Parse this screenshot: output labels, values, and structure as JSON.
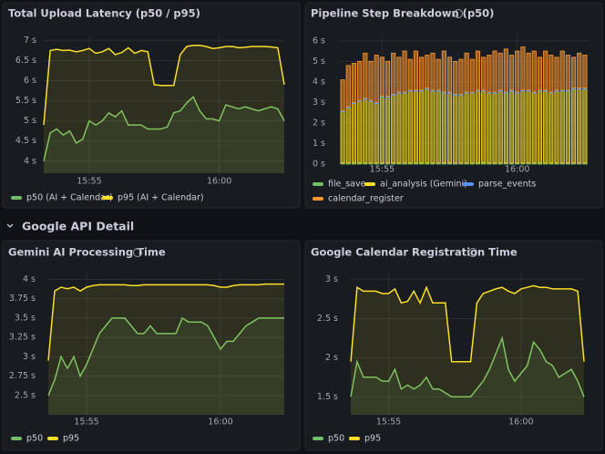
{
  "row_title": "Google API Detail",
  "chart_data": [
    {
      "type": "line",
      "title": "Total Upload Latency (p50 / p95)",
      "categories": [
        null,
        null,
        null,
        null,
        null,
        null,
        null,
        "15:55",
        null,
        null,
        null,
        null,
        null,
        null,
        null,
        null,
        null,
        null,
        null,
        null,
        null,
        null,
        null,
        null,
        null,
        null,
        null,
        "16:00",
        null,
        null,
        null,
        null,
        null,
        null,
        null,
        null,
        null,
        null
      ],
      "ylim": [
        3.7,
        7.1
      ],
      "yticks": [
        {
          "value": 4,
          "label": "4 s"
        },
        {
          "value": 4.5,
          "label": "4.5 s"
        },
        {
          "value": 5,
          "label": "5 s"
        },
        {
          "value": 5.5,
          "label": "5.5 s"
        },
        {
          "value": 6,
          "label": "6 s"
        },
        {
          "value": 6.5,
          "label": "6.5 s"
        },
        {
          "value": 7,
          "label": "7 s"
        }
      ],
      "series": [
        {
          "name": "p50 (AI + Calendar)",
          "color": "#73bf69",
          "values": [
            4.0,
            4.7,
            4.8,
            4.65,
            4.75,
            4.45,
            4.55,
            5.0,
            4.9,
            5.0,
            5.2,
            5.1,
            5.25,
            4.9,
            4.9,
            4.9,
            4.8,
            4.8,
            4.8,
            4.85,
            5.2,
            5.25,
            5.45,
            5.6,
            5.25,
            5.05,
            5.05,
            5.0,
            5.4,
            5.35,
            5.3,
            5.35,
            5.3,
            5.25,
            5.3,
            5.35,
            5.3,
            5.0
          ]
        },
        {
          "name": "p95 (AI + Calendar)",
          "color": "#fade2a",
          "values": [
            4.9,
            6.75,
            6.78,
            6.75,
            6.76,
            6.72,
            6.75,
            6.8,
            6.68,
            6.72,
            6.8,
            6.65,
            6.7,
            6.82,
            6.68,
            6.75,
            6.72,
            5.9,
            5.88,
            5.88,
            5.88,
            6.65,
            6.85,
            6.88,
            6.88,
            6.85,
            6.8,
            6.82,
            6.85,
            6.85,
            6.82,
            6.83,
            6.85,
            6.85,
            6.85,
            6.84,
            6.82,
            5.9
          ]
        }
      ]
    },
    {
      "type": "bar",
      "title": "Pipeline Step Breakdown (p50)",
      "stacked": true,
      "categories": [
        null,
        null,
        null,
        null,
        null,
        null,
        null,
        "15:55",
        null,
        null,
        null,
        null,
        null,
        null,
        null,
        null,
        null,
        null,
        null,
        null,
        null,
        null,
        null,
        null,
        null,
        null,
        null,
        null,
        null,
        null,
        null,
        "16:00",
        null,
        null,
        null,
        null,
        null,
        null,
        null,
        null,
        null,
        null,
        null,
        null
      ],
      "ylim": [
        0,
        6.3
      ],
      "yticks": [
        {
          "value": 0,
          "label": "0 s"
        },
        {
          "value": 1,
          "label": "1 s"
        },
        {
          "value": 2,
          "label": "2 s"
        },
        {
          "value": 3,
          "label": "3 s"
        },
        {
          "value": 4,
          "label": "4 s"
        },
        {
          "value": 5,
          "label": "5 s"
        },
        {
          "value": 6,
          "label": "6 s"
        }
      ],
      "series": [
        {
          "name": "file_save",
          "color": "#73bf69",
          "values": [
            0.05,
            0.05,
            0.05,
            0.05,
            0.05,
            0.05,
            0.05,
            0.05,
            0.05,
            0.05,
            0.05,
            0.05,
            0.05,
            0.05,
            0.05,
            0.05,
            0.05,
            0.05,
            0.05,
            0.05,
            0.05,
            0.05,
            0.05,
            0.05,
            0.05,
            0.05,
            0.05,
            0.05,
            0.05,
            0.05,
            0.05,
            0.05,
            0.05,
            0.05,
            0.05,
            0.05,
            0.05,
            0.05,
            0.05,
            0.05,
            0.05,
            0.05,
            0.05,
            0.05
          ]
        },
        {
          "name": "ai_analysis (Gemini)",
          "color": "#fade2a",
          "values": [
            2.5,
            2.7,
            2.9,
            3.0,
            3.1,
            3.0,
            2.9,
            3.2,
            3.2,
            3.3,
            3.4,
            3.4,
            3.5,
            3.5,
            3.5,
            3.6,
            3.5,
            3.5,
            3.4,
            3.4,
            3.3,
            3.3,
            3.4,
            3.4,
            3.5,
            3.5,
            3.4,
            3.4,
            3.5,
            3.4,
            3.5,
            3.4,
            3.5,
            3.5,
            3.4,
            3.5,
            3.5,
            3.4,
            3.5,
            3.5,
            3.5,
            3.6,
            3.6,
            3.6
          ]
        },
        {
          "name": "parse_events",
          "color": "#5794f2",
          "values": [
            0.05,
            0.05,
            0.05,
            0.05,
            0.05,
            0.05,
            0.05,
            0.05,
            0.05,
            0.05,
            0.05,
            0.05,
            0.05,
            0.05,
            0.05,
            0.05,
            0.05,
            0.05,
            0.05,
            0.05,
            0.05,
            0.05,
            0.05,
            0.05,
            0.05,
            0.05,
            0.05,
            0.05,
            0.05,
            0.05,
            0.05,
            0.05,
            0.05,
            0.05,
            0.05,
            0.05,
            0.05,
            0.05,
            0.05,
            0.05,
            0.05,
            0.05,
            0.05,
            0.05
          ]
        },
        {
          "name": "calendar_register",
          "color": "#ff9830",
          "values": [
            1.5,
            2.0,
            1.9,
            1.9,
            2.2,
            1.9,
            2.3,
            1.9,
            1.7,
            2.0,
            1.7,
            2.0,
            1.5,
            1.9,
            1.6,
            1.6,
            1.8,
            1.5,
            2.0,
            1.7,
            1.6,
            1.7,
            1.9,
            1.6,
            1.9,
            1.6,
            1.8,
            2.0,
            1.8,
            2.1,
            1.7,
            2.0,
            2.1,
            1.8,
            2.0,
            1.6,
            1.9,
            1.8,
            1.6,
            1.9,
            1.7,
            1.5,
            1.7,
            1.6
          ]
        }
      ]
    },
    {
      "type": "line",
      "title": "Gemini AI Processing Time",
      "categories": [
        null,
        null,
        null,
        null,
        null,
        null,
        "15:55",
        null,
        null,
        null,
        null,
        null,
        null,
        null,
        null,
        null,
        null,
        null,
        null,
        null,
        null,
        null,
        null,
        null,
        null,
        null,
        null,
        "16:00",
        null,
        null,
        null,
        null,
        null,
        null,
        null,
        null,
        null,
        null
      ],
      "ylim": [
        2.25,
        4.1
      ],
      "yticks": [
        {
          "value": 2.5,
          "label": "2.5 s"
        },
        {
          "value": 2.75,
          "label": "2.75 s"
        },
        {
          "value": 3,
          "label": "3 s"
        },
        {
          "value": 3.25,
          "label": "3.25 s"
        },
        {
          "value": 3.5,
          "label": "3.5 s"
        },
        {
          "value": 3.75,
          "label": "3.75 s"
        },
        {
          "value": 4,
          "label": "4 s"
        }
      ],
      "series": [
        {
          "name": "p50",
          "color": "#73bf69",
          "values": [
            2.5,
            2.7,
            3.0,
            2.85,
            3.0,
            2.75,
            2.9,
            3.1,
            3.3,
            3.4,
            3.5,
            3.5,
            3.5,
            3.4,
            3.3,
            3.3,
            3.4,
            3.3,
            3.3,
            3.3,
            3.3,
            3.5,
            3.45,
            3.45,
            3.45,
            3.4,
            3.25,
            3.1,
            3.2,
            3.2,
            3.3,
            3.4,
            3.45,
            3.5,
            3.5,
            3.5,
            3.5,
            3.5
          ]
        },
        {
          "name": "p95",
          "color": "#fade2a",
          "values": [
            2.95,
            3.85,
            3.9,
            3.88,
            3.9,
            3.85,
            3.9,
            3.92,
            3.93,
            3.93,
            3.93,
            3.93,
            3.93,
            3.92,
            3.92,
            3.93,
            3.93,
            3.93,
            3.93,
            3.93,
            3.93,
            3.93,
            3.93,
            3.93,
            3.93,
            3.93,
            3.92,
            3.9,
            3.9,
            3.92,
            3.93,
            3.93,
            3.93,
            3.93,
            3.94,
            3.94,
            3.94,
            3.94
          ]
        }
      ]
    },
    {
      "type": "line",
      "title": "Google Calendar Registration Time",
      "categories": [
        null,
        null,
        null,
        null,
        null,
        null,
        "15:55",
        null,
        null,
        null,
        null,
        null,
        null,
        null,
        null,
        null,
        null,
        null,
        null,
        null,
        null,
        null,
        null,
        null,
        null,
        null,
        null,
        "16:00",
        null,
        null,
        null,
        null,
        null,
        null,
        null,
        null,
        null,
        null
      ],
      "ylim": [
        1.27,
        3.1
      ],
      "yticks": [
        {
          "value": 1.5,
          "label": "1.5 s"
        },
        {
          "value": 2,
          "label": "2 s"
        },
        {
          "value": 2.5,
          "label": "2.5 s"
        },
        {
          "value": 3,
          "label": "3 s"
        }
      ],
      "series": [
        {
          "name": "p50",
          "color": "#73bf69",
          "values": [
            1.5,
            1.95,
            1.75,
            1.75,
            1.75,
            1.7,
            1.7,
            1.85,
            1.6,
            1.65,
            1.6,
            1.65,
            1.75,
            1.6,
            1.6,
            1.55,
            1.5,
            1.5,
            1.5,
            1.5,
            1.6,
            1.7,
            1.85,
            2.05,
            2.25,
            1.85,
            1.7,
            1.8,
            1.9,
            2.2,
            2.1,
            1.95,
            1.9,
            1.75,
            1.8,
            1.85,
            1.7,
            1.5
          ]
        },
        {
          "name": "p95",
          "color": "#fade2a",
          "values": [
            1.95,
            2.9,
            2.85,
            2.85,
            2.85,
            2.82,
            2.82,
            2.88,
            2.7,
            2.72,
            2.85,
            2.7,
            2.9,
            2.7,
            2.7,
            2.7,
            1.95,
            1.95,
            1.95,
            1.95,
            2.7,
            2.82,
            2.85,
            2.88,
            2.9,
            2.85,
            2.82,
            2.88,
            2.9,
            2.92,
            2.9,
            2.9,
            2.88,
            2.88,
            2.88,
            2.88,
            2.85,
            1.95
          ]
        }
      ]
    }
  ]
}
